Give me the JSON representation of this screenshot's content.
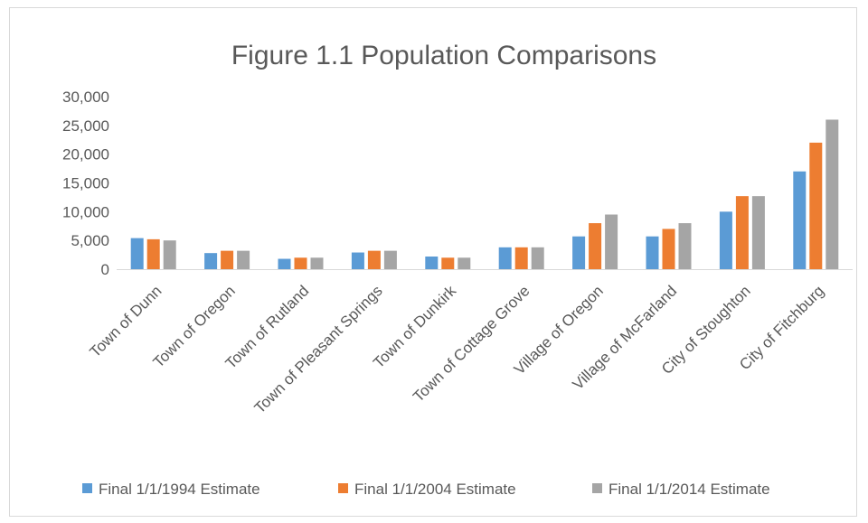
{
  "chart_data": {
    "type": "bar",
    "title": "Figure 1.1 Population Comparisons",
    "xlabel": "",
    "ylabel": "",
    "ylim": [
      0,
      30000
    ],
    "yticks": [
      "30,000",
      "25,000",
      "20,000",
      "15,000",
      "10,000",
      "5,000",
      "0"
    ],
    "ytick_values": [
      30000,
      25000,
      20000,
      15000,
      10000,
      5000,
      0
    ],
    "grid": false,
    "legend_position": "bottom",
    "categories": [
      "Town of Dunn",
      "Town of Oregon",
      "Town of Rutland",
      "Town of Pleasant Springs",
      "Town of Dunkirk",
      "Town of Cottage Grove",
      "Village of Oregon",
      "Village of McFarland",
      "City of Stoughton",
      "City of Fitchburg"
    ],
    "series": [
      {
        "name": "Final 1/1/1994 Estimate",
        "color": "#5B9BD5",
        "values": [
          5400,
          2800,
          1800,
          2900,
          2200,
          3800,
          5700,
          5700,
          10000,
          17000
        ]
      },
      {
        "name": "Final 1/1/2004 Estimate",
        "color": "#ED7D31",
        "values": [
          5200,
          3200,
          2000,
          3200,
          2000,
          3800,
          8000,
          7000,
          12700,
          22000
        ]
      },
      {
        "name": "Final 1/1/2014 Estimate",
        "color": "#A5A5A5",
        "values": [
          5000,
          3200,
          2000,
          3200,
          2000,
          3800,
          9500,
          8000,
          12700,
          26000
        ]
      }
    ]
  }
}
